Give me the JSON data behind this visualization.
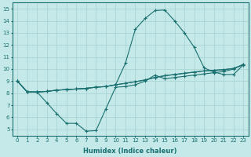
{
  "xlabel": "Humidex (Indice chaleur)",
  "xlim": [
    -0.5,
    23.5
  ],
  "ylim": [
    4.5,
    15.5
  ],
  "xticks": [
    0,
    1,
    2,
    3,
    4,
    5,
    6,
    7,
    8,
    9,
    10,
    11,
    12,
    13,
    14,
    15,
    16,
    17,
    18,
    19,
    20,
    21,
    22,
    23
  ],
  "yticks": [
    5,
    6,
    7,
    8,
    9,
    10,
    11,
    12,
    13,
    14,
    15
  ],
  "background_color": "#c5e8e8",
  "grid_color": "#aad4d4",
  "line_color": "#1a7070",
  "curves": [
    {
      "y": [
        9.0,
        8.1,
        8.1,
        7.2,
        6.3,
        5.5,
        5.5,
        4.85,
        4.9,
        6.7,
        8.5,
        8.55,
        8.7,
        9.0,
        9.5,
        9.2,
        9.3,
        9.4,
        9.5,
        9.6,
        9.7,
        9.8,
        10.0,
        10.4
      ],
      "marker": "+"
    },
    {
      "y": [
        9.0,
        8.1,
        8.1,
        8.15,
        8.25,
        8.3,
        8.35,
        8.4,
        8.5,
        8.55,
        8.7,
        10.5,
        13.3,
        14.2,
        14.85,
        14.9,
        14.0,
        13.0,
        11.8,
        10.1,
        9.75,
        9.55,
        9.55,
        10.35
      ],
      "marker": "+"
    },
    {
      "y": [
        9.0,
        8.1,
        8.1,
        8.15,
        8.25,
        8.3,
        8.35,
        8.4,
        8.5,
        8.55,
        8.7,
        8.82,
        8.95,
        9.1,
        9.3,
        9.45,
        9.55,
        9.65,
        9.75,
        9.85,
        9.9,
        9.95,
        10.05,
        10.38
      ],
      "marker": "+"
    },
    {
      "y": [
        9.0,
        8.1,
        8.1,
        8.15,
        8.25,
        8.3,
        8.35,
        8.4,
        8.5,
        8.55,
        8.7,
        8.82,
        8.95,
        9.1,
        9.3,
        9.45,
        9.55,
        9.65,
        9.75,
        9.85,
        9.9,
        9.95,
        10.05,
        10.35
      ],
      "marker": "+"
    }
  ]
}
